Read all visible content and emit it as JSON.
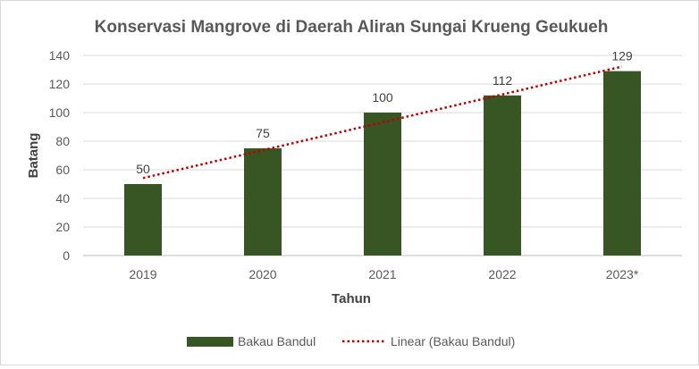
{
  "chart_data": {
    "type": "bar",
    "title": "Konservasi Mangrove di Daerah Aliran Sungai Krueng Geukueh",
    "xlabel": "Tahun",
    "ylabel": "Batang",
    "categories": [
      "2019",
      "2020",
      "2021",
      "2022",
      "2023*"
    ],
    "series": [
      {
        "name": "Bakau Bandul",
        "values": [
          50,
          75,
          100,
          112,
          129
        ],
        "data_labels": [
          "50",
          "75",
          "100",
          "112",
          "129"
        ],
        "color": "#375623"
      }
    ],
    "trendline": {
      "name": "Linear (Bakau Bandul)",
      "type": "linear",
      "color": "#c00000",
      "style": "dotted"
    },
    "ylim": [
      0,
      140
    ],
    "yticks": [
      0,
      20,
      40,
      60,
      80,
      100,
      120,
      140
    ],
    "ytick_labels": [
      "0",
      "20",
      "40",
      "60",
      "80",
      "100",
      "120",
      "140"
    ],
    "grid": true,
    "legend_position": "bottom",
    "legend": [
      {
        "label": "Bakau Bandul",
        "kind": "bar"
      },
      {
        "label": "Linear (Bakau Bandul)",
        "kind": "trendline"
      }
    ]
  }
}
